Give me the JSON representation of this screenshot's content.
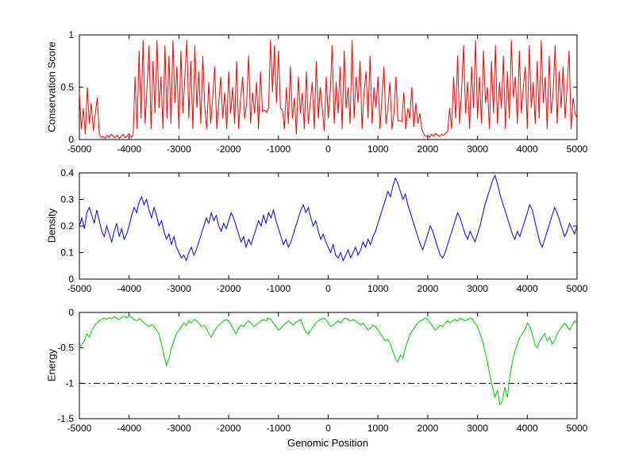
{
  "figure": {
    "background": "#ffffff",
    "axis_color": "#000000"
  },
  "chart_data": [
    {
      "type": "line",
      "title": "",
      "ylabel": "Conservation Score",
      "xlabel": "",
      "color": "#ff0000",
      "xlim": [
        -5000,
        5000
      ],
      "ylim": [
        0,
        1
      ],
      "xticks": [
        -5000,
        -4000,
        -3000,
        -2000,
        -1000,
        0,
        1000,
        2000,
        3000,
        4000,
        5000
      ],
      "yticks": [
        0,
        0.5,
        1
      ],
      "grid": false,
      "values": [
        0.45,
        0.1,
        0.3,
        0.05,
        0.5,
        0.15,
        0.35,
        0.08,
        0.25,
        0.4,
        0.05,
        0.02,
        0.03,
        0.01,
        0.04,
        0.02,
        0.05,
        0.03,
        0.02,
        0.04,
        0.01,
        0.03,
        0.05,
        0.02,
        0.03,
        0.06,
        0.02,
        0.04,
        0.6,
        0.1,
        0.85,
        0.2,
        0.95,
        0.15,
        0.5,
        0.9,
        0.1,
        0.75,
        0.25,
        0.95,
        0.3,
        0.6,
        0.1,
        0.9,
        0.2,
        0.8,
        0.15,
        0.95,
        0.35,
        0.7,
        0.1,
        0.85,
        0.25,
        0.6,
        0.95,
        0.2,
        0.75,
        0.1,
        0.9,
        0.3,
        0.65,
        0.15,
        0.8,
        0.3,
        0.1,
        0.55,
        0.15,
        0.4,
        0.7,
        0.1,
        0.35,
        0.6,
        0.2,
        0.45,
        0.1,
        0.65,
        0.25,
        0.5,
        0.15,
        0.75,
        0.1,
        0.4,
        0.6,
        0.2,
        0.35,
        0.8,
        0.15,
        0.45,
        0.25,
        0.55,
        0.1,
        0.65,
        0.27,
        0.28,
        0.26,
        0.3,
        0.95,
        0.45,
        0.9,
        0.35,
        0.85,
        0.3,
        0.28,
        0.1,
        0.5,
        0.15,
        0.7,
        0.2,
        0.4,
        0.05,
        0.6,
        0.25,
        0.45,
        0.1,
        0.65,
        0.15,
        0.35,
        0.55,
        0.1,
        0.75,
        0.2,
        0.5,
        0.3,
        0.08,
        0.6,
        0.2,
        0.45,
        0.9,
        0.15,
        0.55,
        0.25,
        0.7,
        0.1,
        0.85,
        0.3,
        0.5,
        0.15,
        0.95,
        0.2,
        0.6,
        0.35,
        0.75,
        0.1,
        0.45,
        0.65,
        0.2,
        0.8,
        0.15,
        0.5,
        0.3,
        0.6,
        0.1,
        0.4,
        0.7,
        0.15,
        0.3,
        0.55,
        0.1,
        0.25,
        0.6,
        0.18,
        0.18,
        0.17,
        0.45,
        0.1,
        0.3,
        0.2,
        0.5,
        0.12,
        0.35,
        0.15,
        0.25,
        0.1,
        0.05,
        0.03,
        0.04,
        0.02,
        0.05,
        0.03,
        0.06,
        0.04,
        0.03,
        0.05,
        0.04,
        0.06,
        0.08,
        0.3,
        0.1,
        0.6,
        0.2,
        0.8,
        0.15,
        0.45,
        0.9,
        0.25,
        0.55,
        0.1,
        0.7,
        0.3,
        0.95,
        0.2,
        0.6,
        0.15,
        0.85,
        0.35,
        0.5,
        0.1,
        0.75,
        0.25,
        0.9,
        0.15,
        0.55,
        0.3,
        0.8,
        0.1,
        0.65,
        0.2,
        0.95,
        0.4,
        0.6,
        0.15,
        0.85,
        0.25,
        0.5,
        0.7,
        0.1,
        0.9,
        0.3,
        0.55,
        0.15,
        0.75,
        0.2,
        0.95,
        0.35,
        0.6,
        0.1,
        0.8,
        0.25,
        0.45,
        0.9,
        0.15,
        0.65,
        0.3,
        0.7,
        0.2,
        0.5,
        0.85,
        0.1,
        0.4,
        0.25,
        0.2
      ]
    },
    {
      "type": "line",
      "title": "",
      "ylabel": "Density",
      "xlabel": "",
      "color": "#0000ff",
      "xlim": [
        -5000,
        5000
      ],
      "ylim": [
        0,
        0.4
      ],
      "xticks": [
        -5000,
        -4000,
        -3000,
        -2000,
        -1000,
        0,
        1000,
        2000,
        3000,
        4000,
        5000
      ],
      "yticks": [
        0,
        0.1,
        0.2,
        0.3,
        0.4
      ],
      "grid": false,
      "values": [
        0.2,
        0.23,
        0.19,
        0.25,
        0.27,
        0.24,
        0.21,
        0.26,
        0.22,
        0.18,
        0.16,
        0.2,
        0.17,
        0.14,
        0.18,
        0.21,
        0.16,
        0.19,
        0.15,
        0.17,
        0.2,
        0.24,
        0.27,
        0.25,
        0.29,
        0.31,
        0.28,
        0.3,
        0.26,
        0.23,
        0.27,
        0.24,
        0.2,
        0.22,
        0.18,
        0.15,
        0.17,
        0.13,
        0.16,
        0.12,
        0.1,
        0.08,
        0.09,
        0.07,
        0.1,
        0.12,
        0.09,
        0.11,
        0.14,
        0.17,
        0.2,
        0.23,
        0.21,
        0.25,
        0.22,
        0.24,
        0.2,
        0.18,
        0.21,
        0.19,
        0.22,
        0.25,
        0.23,
        0.2,
        0.17,
        0.14,
        0.16,
        0.12,
        0.15,
        0.13,
        0.16,
        0.19,
        0.22,
        0.2,
        0.24,
        0.21,
        0.25,
        0.23,
        0.26,
        0.22,
        0.19,
        0.16,
        0.13,
        0.15,
        0.12,
        0.14,
        0.17,
        0.2,
        0.23,
        0.26,
        0.28,
        0.25,
        0.27,
        0.23,
        0.2,
        0.22,
        0.18,
        0.15,
        0.17,
        0.14,
        0.12,
        0.1,
        0.13,
        0.09,
        0.08,
        0.1,
        0.07,
        0.09,
        0.11,
        0.08,
        0.1,
        0.12,
        0.09,
        0.11,
        0.14,
        0.12,
        0.15,
        0.13,
        0.16,
        0.18,
        0.21,
        0.24,
        0.27,
        0.3,
        0.33,
        0.31,
        0.35,
        0.38,
        0.36,
        0.33,
        0.3,
        0.32,
        0.28,
        0.25,
        0.22,
        0.19,
        0.16,
        0.13,
        0.11,
        0.14,
        0.17,
        0.2,
        0.18,
        0.15,
        0.12,
        0.09,
        0.08,
        0.1,
        0.13,
        0.16,
        0.19,
        0.22,
        0.25,
        0.23,
        0.2,
        0.17,
        0.15,
        0.18,
        0.16,
        0.14,
        0.17,
        0.2,
        0.24,
        0.28,
        0.31,
        0.34,
        0.37,
        0.39,
        0.36,
        0.32,
        0.29,
        0.26,
        0.23,
        0.2,
        0.17,
        0.15,
        0.18,
        0.16,
        0.19,
        0.22,
        0.25,
        0.28,
        0.26,
        0.22,
        0.18,
        0.14,
        0.12,
        0.15,
        0.18,
        0.21,
        0.24,
        0.27,
        0.25,
        0.22,
        0.19,
        0.16,
        0.18,
        0.21,
        0.19,
        0.17,
        0.2
      ]
    },
    {
      "type": "line",
      "title": "",
      "ylabel": "Energy",
      "xlabel": "Genomic Position",
      "color": "#00cc00",
      "xlim": [
        -5000,
        5000
      ],
      "ylim": [
        -1.5,
        0
      ],
      "xticks": [
        -5000,
        -4000,
        -3000,
        -2000,
        -1000,
        0,
        1000,
        2000,
        3000,
        4000,
        5000
      ],
      "yticks": [
        -1.5,
        -1,
        -0.5,
        0
      ],
      "grid": false,
      "annotations": [
        {
          "type": "hline",
          "y": -1,
          "style": "dash-dot",
          "color": "#000000"
        }
      ],
      "values": [
        -0.5,
        -0.45,
        -0.4,
        -0.3,
        -0.35,
        -0.25,
        -0.2,
        -0.15,
        -0.12,
        -0.1,
        -0.08,
        -0.1,
        -0.07,
        -0.09,
        -0.06,
        -0.08,
        -0.1,
        -0.07,
        -0.05,
        -0.08,
        -0.05,
        -0.07,
        -0.1,
        -0.12,
        -0.09,
        -0.11,
        -0.15,
        -0.18,
        -0.2,
        -0.17,
        -0.2,
        -0.25,
        -0.3,
        -0.45,
        -0.6,
        -0.75,
        -0.65,
        -0.5,
        -0.4,
        -0.3,
        -0.25,
        -0.2,
        -0.15,
        -0.18,
        -0.12,
        -0.15,
        -0.1,
        -0.12,
        -0.15,
        -0.2,
        -0.18,
        -0.22,
        -0.3,
        -0.35,
        -0.28,
        -0.22,
        -0.18,
        -0.15,
        -0.12,
        -0.1,
        -0.12,
        -0.18,
        -0.25,
        -0.3,
        -0.22,
        -0.18,
        -0.2,
        -0.15,
        -0.12,
        -0.15,
        -0.2,
        -0.18,
        -0.15,
        -0.12,
        -0.1,
        -0.12,
        -0.08,
        -0.1,
        -0.15,
        -0.2,
        -0.25,
        -0.22,
        -0.18,
        -0.15,
        -0.12,
        -0.15,
        -0.18,
        -0.14,
        -0.12,
        -0.1,
        -0.2,
        -0.28,
        -0.3,
        -0.25,
        -0.2,
        -0.15,
        -0.12,
        -0.1,
        -0.08,
        -0.1,
        -0.15,
        -0.2,
        -0.18,
        -0.15,
        -0.12,
        -0.15,
        -0.1,
        -0.08,
        -0.1,
        -0.12,
        -0.1,
        -0.12,
        -0.15,
        -0.18,
        -0.15,
        -0.2,
        -0.25,
        -0.22,
        -0.18,
        -0.2,
        -0.25,
        -0.3,
        -0.35,
        -0.4,
        -0.38,
        -0.45,
        -0.55,
        -0.65,
        -0.7,
        -0.6,
        -0.65,
        -0.5,
        -0.4,
        -0.3,
        -0.25,
        -0.2,
        -0.15,
        -0.12,
        -0.1,
        -0.08,
        -0.1,
        -0.15,
        -0.2,
        -0.25,
        -0.22,
        -0.18,
        -0.2,
        -0.15,
        -0.12,
        -0.15,
        -0.12,
        -0.1,
        -0.12,
        -0.08,
        -0.1,
        -0.12,
        -0.1,
        -0.08,
        -0.1,
        -0.15,
        -0.2,
        -0.3,
        -0.4,
        -0.55,
        -0.7,
        -0.9,
        -1.05,
        -1.2,
        -1.1,
        -1.3,
        -1.25,
        -1.05,
        -1.2,
        -0.9,
        -0.7,
        -0.55,
        -0.45,
        -0.35,
        -0.3,
        -0.25,
        -0.15,
        -0.2,
        -0.3,
        -0.45,
        -0.5,
        -0.4,
        -0.35,
        -0.3,
        -0.4,
        -0.35,
        -0.45,
        -0.4,
        -0.3,
        -0.25,
        -0.2,
        -0.15,
        -0.2,
        -0.25,
        -0.18,
        -0.12,
        -0.15
      ]
    }
  ]
}
